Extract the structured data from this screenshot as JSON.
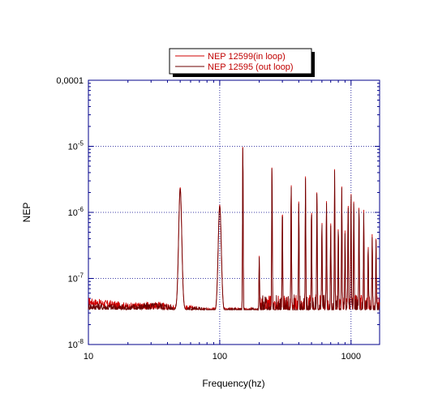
{
  "chart_data": {
    "type": "line",
    "xlabel": "Frequency(hz)",
    "ylabel": "NEP",
    "x_scale": "log",
    "y_scale": "log",
    "xlim": [
      10,
      1650
    ],
    "ylim": [
      1e-08,
      0.0001
    ],
    "grid": true,
    "legend_position": "top-center",
    "x_ticks": [
      {
        "value": 10,
        "label": "10"
      },
      {
        "value": 100,
        "label": "100"
      },
      {
        "value": 1000,
        "label": "1000"
      }
    ],
    "y_ticks": [
      {
        "value": 1e-08,
        "base": "10",
        "exp": "-8",
        "plain": ""
      },
      {
        "value": 1e-07,
        "base": "10",
        "exp": "-7",
        "plain": ""
      },
      {
        "value": 1e-06,
        "base": "10",
        "exp": "-6",
        "plain": ""
      },
      {
        "value": 1e-05,
        "base": "10",
        "exp": "-5",
        "plain": ""
      },
      {
        "value": 0.0001,
        "base": "",
        "exp": "",
        "plain": "0,0001"
      }
    ],
    "series": [
      {
        "name": "NEP 12599(in loop)",
        "color": "#d00000",
        "base_floor": [
          [
            10,
            4.4e-08
          ],
          [
            20,
            3.7e-08
          ],
          [
            35,
            3.8e-08
          ],
          [
            45,
            3.5e-08
          ],
          [
            100,
            3.1e-08
          ],
          [
            1600,
            3e-08
          ]
        ],
        "peaks": [
          [
            50,
            2.4e-06
          ],
          [
            100,
            1.3e-06
          ],
          [
            150,
            1.35e-05
          ],
          [
            200,
            2.2e-07
          ],
          [
            250,
            6.8e-06
          ],
          [
            300,
            1.4e-06
          ],
          [
            350,
            3.2e-06
          ],
          [
            400,
            1.6e-06
          ],
          [
            450,
            3.5e-06
          ],
          [
            500,
            1.4e-06
          ],
          [
            550,
            2.6e-06
          ],
          [
            600,
            8e-07
          ],
          [
            650,
            1.6e-06
          ],
          [
            700,
            7e-07
          ],
          [
            750,
            4.5e-06
          ],
          [
            800,
            7e-07
          ],
          [
            850,
            2.5e-06
          ],
          [
            900,
            5.5e-07
          ],
          [
            950,
            1.5e-06
          ],
          [
            1000,
            2.2e-06
          ],
          [
            1050,
            1.8e-06
          ],
          [
            1150,
            1.5e-06
          ],
          [
            1250,
            1.1e-06
          ],
          [
            1350,
            3.5e-07
          ],
          [
            1450,
            5e-07
          ],
          [
            1550,
            4e-07
          ]
        ]
      },
      {
        "name": "NEP 12595 (out loop)",
        "color": "#6e0000",
        "base_floor": [
          [
            10,
            3.7e-08
          ],
          [
            20,
            3.5e-08
          ],
          [
            35,
            3.8e-08
          ],
          [
            45,
            3.4e-08
          ],
          [
            100,
            3.1e-08
          ],
          [
            1600,
            3e-08
          ]
        ],
        "peaks": [
          [
            50,
            2.3e-06
          ],
          [
            100,
            1.25e-06
          ],
          [
            150,
            1.3e-05
          ],
          [
            200,
            2.1e-07
          ],
          [
            250,
            6.6e-06
          ],
          [
            300,
            1.3e-06
          ],
          [
            350,
            3e-06
          ],
          [
            400,
            1.5e-06
          ],
          [
            450,
            3.3e-06
          ],
          [
            500,
            1.3e-06
          ],
          [
            550,
            2.5e-06
          ],
          [
            600,
            7.5e-07
          ],
          [
            650,
            1.5e-06
          ],
          [
            700,
            6.5e-07
          ],
          [
            750,
            4.3e-06
          ],
          [
            800,
            6.5e-07
          ],
          [
            850,
            2.4e-06
          ],
          [
            900,
            5e-07
          ],
          [
            950,
            1.4e-06
          ],
          [
            1000,
            2.1e-06
          ],
          [
            1050,
            1.7e-06
          ],
          [
            1150,
            1.4e-06
          ],
          [
            1250,
            1e-06
          ],
          [
            1350,
            3.2e-07
          ],
          [
            1450,
            4.5e-07
          ],
          [
            1550,
            3.8e-07
          ]
        ]
      }
    ]
  }
}
